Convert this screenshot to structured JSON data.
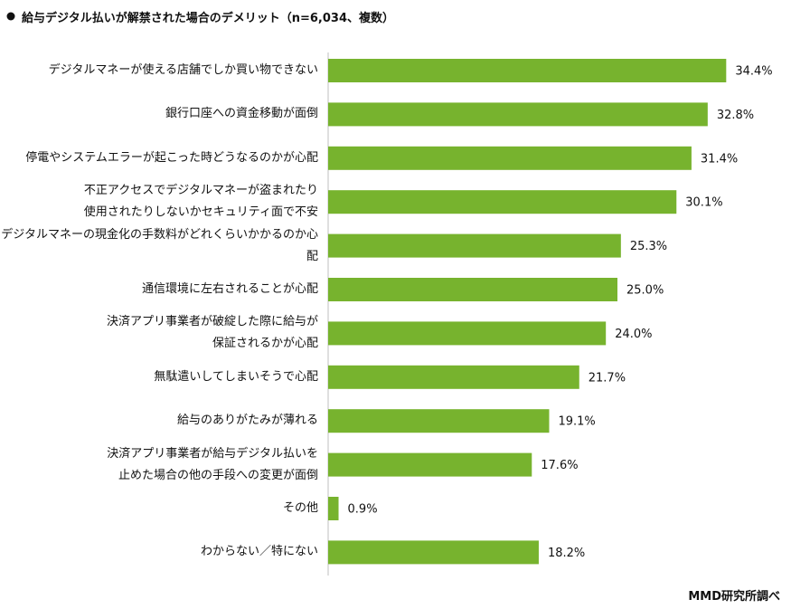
{
  "chart_data": {
    "type": "bar",
    "orientation": "horizontal",
    "title": "給与デジタル払いが解禁された場合のデメリット（n=6,034、複数）",
    "source": "MMD研究所調べ",
    "categories": [
      "デジタルマネーが使える店舗でしか買い物できない",
      "銀行口座への資金移動が面倒",
      "停電やシステムエラーが起こった時どうなるのかが心配",
      "不正アクセスでデジタルマネーが盗まれたり\n使用されたりしないかセキュリティ面で不安",
      "デジタルマネーの現金化の手数料がどれくらいかかるのか心配",
      "通信環境に左右されることが心配",
      "決済アプリ事業者が破綻した際に給与が\n保証されるかが心配",
      "無駄遣いしてしまいそうで心配",
      "給与のありがたみが薄れる",
      "決済アプリ事業者が給与デジタル払いを\n止めた場合の他の手段への変更が面倒",
      "その他",
      "わからない／特にない"
    ],
    "values": [
      34.4,
      32.8,
      31.4,
      30.1,
      25.3,
      25.0,
      24.0,
      21.7,
      19.1,
      17.6,
      0.9,
      18.2
    ],
    "value_labels": [
      "34.4%",
      "32.8%",
      "31.4%",
      "30.1%",
      "25.3%",
      "25.0%",
      "24.0%",
      "21.7%",
      "19.1%",
      "17.6%",
      "0.9%",
      "18.2%"
    ],
    "color": "#77b32e",
    "xlim": [
      0,
      40
    ]
  }
}
